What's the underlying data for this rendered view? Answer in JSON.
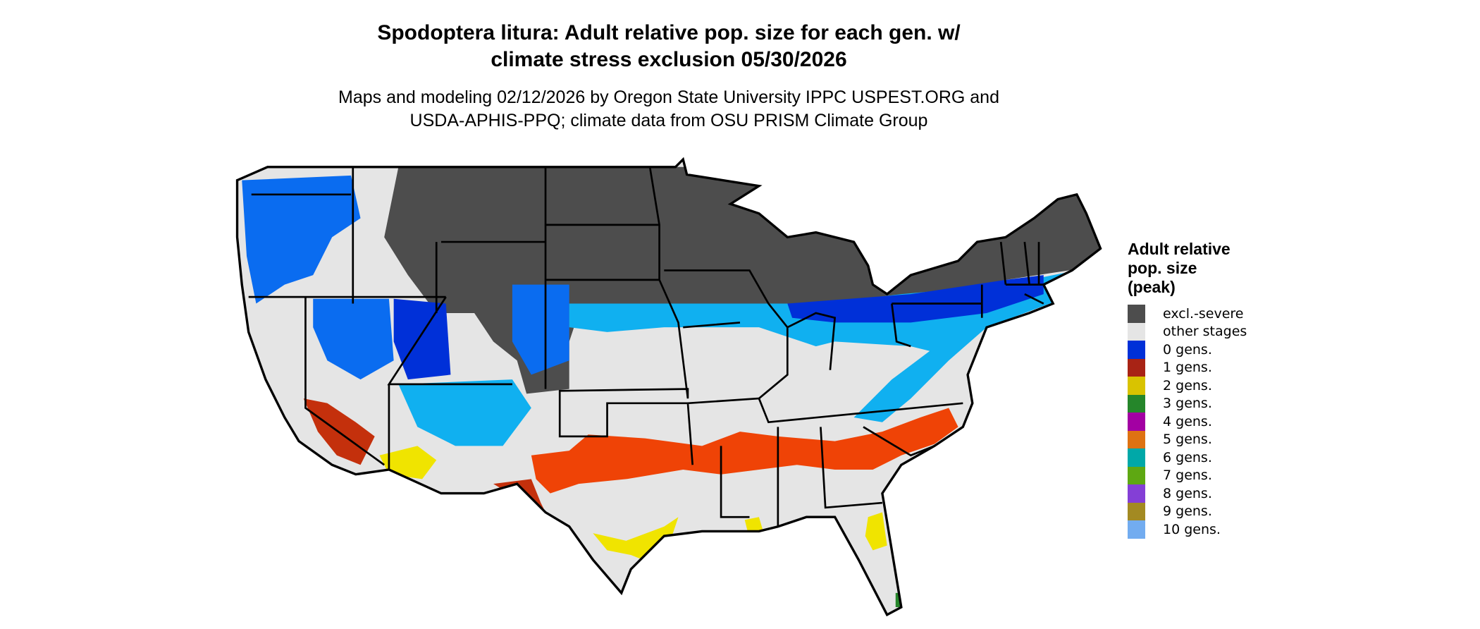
{
  "title": {
    "line1": "Spodoptera litura: Adult relative pop. size for each gen. w/",
    "line2": "climate stress exclusion 05/30/2026"
  },
  "subtitle": {
    "line1": "Maps and modeling 02/12/2026 by Oregon State University IPPC USPEST.ORG and",
    "line2": "USDA-APHIS-PPQ; climate data from OSU PRISM Climate Group"
  },
  "legend": {
    "title_lines": [
      "Adult relative",
      "pop. size",
      "(peak)"
    ],
    "items": [
      {
        "label": "excl.-severe",
        "color": "#4d4d4d"
      },
      {
        "label": "other stages",
        "color": "#e5e5e5"
      },
      {
        "label": "0 gens.",
        "color": "#0030d8"
      },
      {
        "label": "1 gens.",
        "color": "#a82315"
      },
      {
        "label": "2 gens.",
        "color": "#d9c300"
      },
      {
        "label": "3 gens.",
        "color": "#25862a"
      },
      {
        "label": "4 gens.",
        "color": "#a300a3"
      },
      {
        "label": "5 gens.",
        "color": "#de7212"
      },
      {
        "label": "6 gens.",
        "color": "#00a8a8"
      },
      {
        "label": "7 gens.",
        "color": "#5ea812"
      },
      {
        "label": "8 gens.",
        "color": "#843fd6"
      },
      {
        "label": "9 gens.",
        "color": "#a38a22"
      },
      {
        "label": "10 gens.",
        "color": "#72acf0"
      }
    ]
  },
  "map_colors": {
    "land": "#e5e5e5",
    "excluded": "#4d4d4d",
    "blue_dark": "#0030d8",
    "blue_mid": "#0a6cf0",
    "blue_light": "#10b0f0",
    "red": "#c4300c",
    "orange_red": "#ef4306",
    "yellow": "#f0e400",
    "border": "#000000"
  }
}
